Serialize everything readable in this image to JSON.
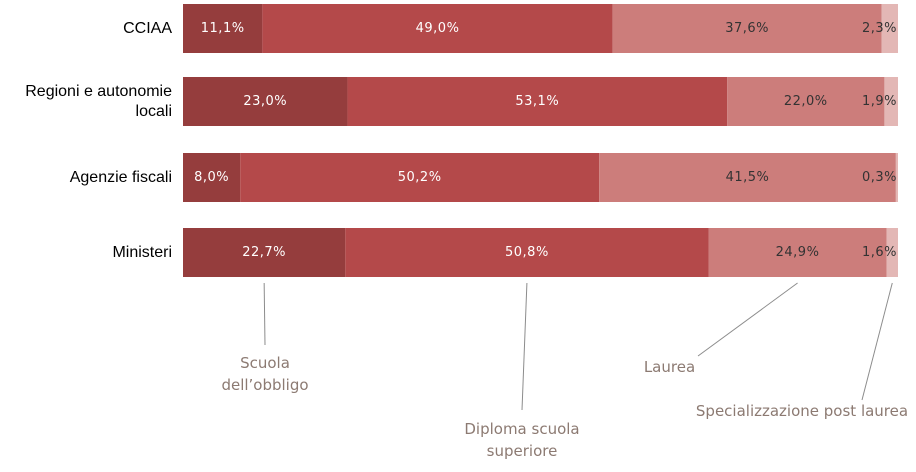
{
  "chart_data": {
    "type": "stacked-bar-horizontal",
    "categories": [
      "CCIAA",
      "Regioni e autonomie locali",
      "Agenzie fiscali",
      "Ministeri"
    ],
    "xlim": [
      0,
      100
    ],
    "series": [
      {
        "name": "Scuola dell’obbligo",
        "color": "#953d3d",
        "values": [
          11.1,
          23.0,
          8.0,
          22.7
        ],
        "value_labels": [
          "11,1%",
          "23,0%",
          "8,0%",
          "22,7%"
        ]
      },
      {
        "name": "Diploma scuola superiore",
        "color": "#b4494a",
        "values": [
          49.0,
          53.1,
          50.2,
          50.8
        ],
        "value_labels": [
          "49,0%",
          "53,1%",
          "50,2%",
          "50,8%"
        ]
      },
      {
        "name": "Laurea",
        "color": "#cc7d7b",
        "values": [
          37.6,
          22.0,
          41.5,
          24.9
        ],
        "value_labels": [
          "37,6%",
          "22,0%",
          "41,5%",
          "24,9%"
        ]
      },
      {
        "name": "Specializzazione post laurea",
        "color": "#e3b7b5",
        "values": [
          2.3,
          1.9,
          0.3,
          1.6
        ],
        "value_labels": [
          "2,3%",
          "1,9%",
          "0,3%",
          "1,6%"
        ]
      }
    ]
  }
}
